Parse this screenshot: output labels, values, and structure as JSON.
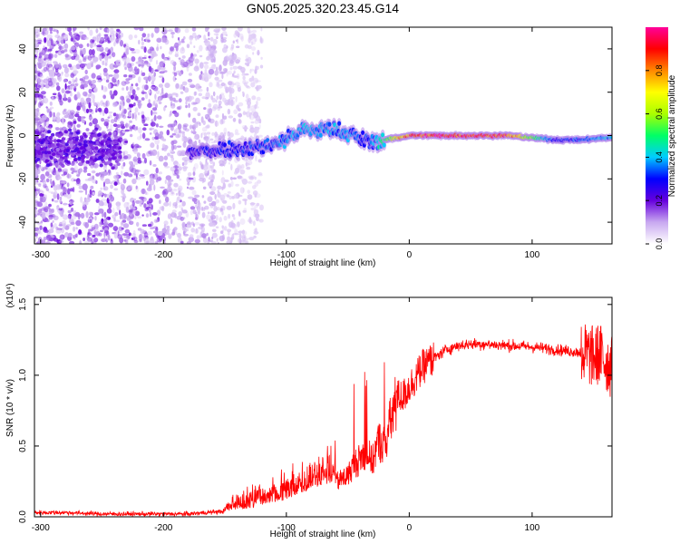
{
  "title": "GN05.2025.320.23.45.G14",
  "chart_data": [
    {
      "type": "heatmap",
      "description_text": "",
      "xlabel": "Height of straight line (km)",
      "ylabel": "Frequency (Hz)",
      "xlim": [
        -305,
        165
      ],
      "ylim": [
        -50,
        50
      ],
      "xticks": [
        -300,
        -200,
        -100,
        0,
        100
      ],
      "yticks": [
        -40,
        -20,
        0,
        20,
        40
      ],
      "colorbar": {
        "label": "Normalized spectral amplitude",
        "range": [
          0,
          1
        ],
        "ticks": [
          "0.0",
          "0.2",
          "0.4",
          "0.6",
          "0.8"
        ],
        "tick_values": [
          0.0,
          0.2,
          0.4,
          0.6,
          0.8
        ],
        "colormap": [
          "#ffffff",
          "#c8a8f0",
          "#6600dd",
          "#0000ff",
          "#00ccff",
          "#00ff66",
          "#aaff00",
          "#ffff00",
          "#ff8800",
          "#ff0000",
          "#ff0099"
        ]
      },
      "ridge": {
        "x": [
          -180,
          -165,
          -150,
          -135,
          -120,
          -105,
          -95,
          -85,
          -75,
          -65,
          -55,
          -45,
          -38,
          -30,
          -20,
          -10,
          0,
          20,
          40,
          60,
          80,
          100,
          120,
          140,
          160
        ],
        "frequency": [
          -8,
          -7,
          -6,
          -6,
          -5,
          -3,
          0,
          3,
          2,
          3,
          2,
          0,
          -2,
          -3,
          -2,
          -1,
          0,
          0,
          0,
          0,
          0,
          -1,
          -2,
          -2,
          -1
        ],
        "amplitude": [
          0.25,
          0.28,
          0.3,
          0.3,
          0.32,
          0.35,
          0.38,
          0.4,
          0.38,
          0.4,
          0.38,
          0.35,
          0.3,
          0.35,
          0.5,
          0.7,
          0.9,
          0.95,
          0.95,
          0.95,
          0.9,
          0.55,
          0.3,
          0.35,
          0.4
        ]
      },
      "noise_region": {
        "x_range": [
          -305,
          -120
        ],
        "frequency_range": [
          -50,
          50
        ],
        "amplitude_range": [
          0.0,
          0.15
        ]
      }
    },
    {
      "type": "line",
      "xlabel": "Height of straight line (km)",
      "ylabel": "SNR (10 * v/v)",
      "y_multiplier": "(x10⁴)",
      "xlim": [
        -305,
        165
      ],
      "ylim": [
        0,
        1.55
      ],
      "xticks": [
        -300,
        -200,
        -100,
        0,
        100
      ],
      "yticks": [
        "0.0",
        "0.5",
        "1.0",
        "1.5"
      ],
      "ytick_values": [
        0.0,
        0.5,
        1.0,
        1.5
      ],
      "color": "#ff0000",
      "series": [
        {
          "x": [
            -305,
            -280,
            -250,
            -220,
            -180,
            -150,
            -130,
            -110,
            -100,
            -90,
            -80,
            -70,
            -60,
            -50,
            -45,
            -40,
            -35,
            -30,
            -25,
            -20,
            -15,
            -10,
            -5,
            0,
            5,
            10,
            20,
            30,
            40,
            50,
            60,
            80,
            100,
            120,
            140,
            150,
            155,
            160,
            165
          ],
          "y": [
            0.03,
            0.03,
            0.02,
            0.02,
            0.02,
            0.04,
            0.06,
            0.1,
            0.12,
            0.15,
            0.2,
            0.22,
            0.25,
            0.3,
            0.38,
            0.42,
            0.48,
            0.4,
            0.55,
            0.52,
            0.7,
            0.85,
            0.85,
            0.92,
            0.98,
            1.05,
            1.12,
            1.18,
            1.21,
            1.22,
            1.22,
            1.21,
            1.2,
            1.18,
            1.16,
            1.13,
            1.15,
            1.1,
            1.05
          ]
        }
      ]
    }
  ]
}
